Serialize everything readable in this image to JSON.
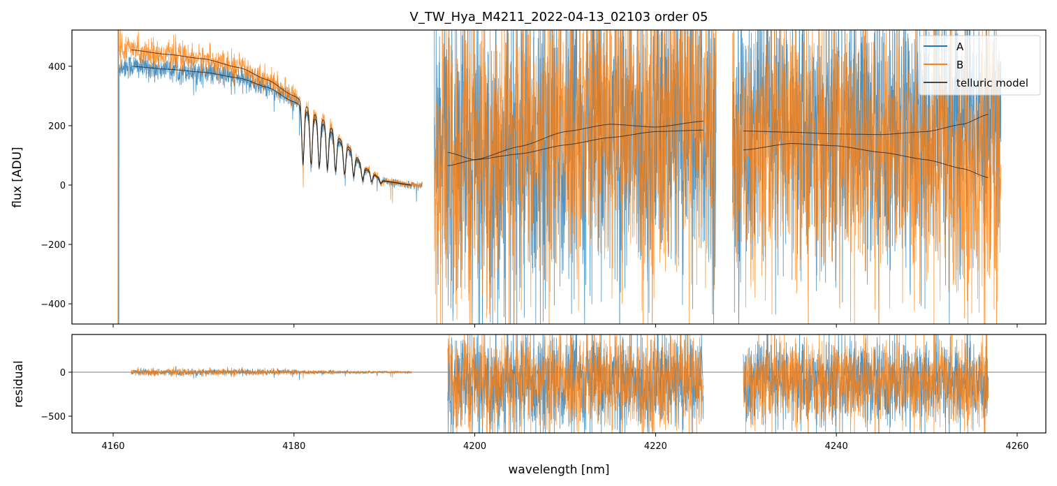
{
  "chart_data": {
    "type": "line",
    "title": "V_TW_Hya_M4211_2022-04-13_02103  order 05",
    "xlabel": "wavelength [nm]",
    "xlim": [
      4155.44,
      4263.17
    ],
    "x_ticks": [
      4160,
      4180,
      4200,
      4220,
      4240,
      4260
    ],
    "panels": [
      {
        "name": "flux",
        "ylabel": "flux [ADU]",
        "ylim": [
          -468,
          522
        ],
        "y_ticks": [
          -400,
          -200,
          0,
          200,
          400
        ],
        "y_tick_labels": [
          "−400",
          "−200",
          "0",
          "200",
          "400"
        ]
      },
      {
        "name": "residual",
        "ylabel": "residual",
        "ylim": [
          -690,
          428
        ],
        "y_ticks": [
          -500,
          0
        ],
        "y_tick_labels": [
          "−500",
          "0"
        ],
        "zero_line": true
      }
    ],
    "legend": {
      "placement": "top-right",
      "entries": [
        {
          "label": "A",
          "color": "#1f77b4"
        },
        {
          "label": "B",
          "color": "#ff7f0e"
        },
        {
          "label": "telluric model",
          "color": "#444444"
        }
      ]
    },
    "segments": [
      {
        "x": [
          4160.5,
          4194.2
        ],
        "noise": 15,
        "fit": [
          4162,
          4193
        ]
      },
      {
        "x": [
          4195.5,
          4226.7
        ],
        "noise": 260,
        "fit": [
          4197,
          4225.3
        ]
      },
      {
        "x": [
          4228.5,
          4258.2
        ],
        "noise": 230,
        "fit": [
          4229.7,
          4256.8
        ]
      }
    ],
    "model_A": [
      [
        [
          4162,
          400
        ],
        [
          4166,
          390
        ],
        [
          4170,
          380
        ],
        [
          4174,
          360
        ],
        [
          4177,
          330
        ],
        [
          4180,
          280
        ],
        [
          4183,
          210
        ],
        [
          4186,
          120
        ],
        [
          4188,
          50
        ],
        [
          4190,
          12
        ],
        [
          4193,
          0
        ]
      ],
      [
        [
          4197,
          110
        ],
        [
          4200,
          85
        ],
        [
          4205,
          105
        ],
        [
          4210,
          135
        ],
        [
          4215,
          160
        ],
        [
          4220,
          180
        ],
        [
          4225.3,
          185
        ]
      ],
      [
        [
          4229.7,
          182
        ],
        [
          4235,
          178
        ],
        [
          4240,
          172
        ],
        [
          4245,
          170
        ],
        [
          4250,
          180
        ],
        [
          4254,
          205
        ],
        [
          4256.8,
          238
        ]
      ]
    ],
    "model_B": [
      [
        [
          4162,
          455
        ],
        [
          4166,
          440
        ],
        [
          4170,
          425
        ],
        [
          4174,
          395
        ],
        [
          4177,
          355
        ],
        [
          4180,
          300
        ],
        [
          4183,
          225
        ],
        [
          4186,
          130
        ],
        [
          4188,
          55
        ],
        [
          4190,
          14
        ],
        [
          4193,
          0
        ]
      ],
      [
        [
          4197,
          65
        ],
        [
          4200,
          85
        ],
        [
          4205,
          130
        ],
        [
          4210,
          180
        ],
        [
          4215,
          205
        ],
        [
          4220,
          195
        ],
        [
          4225.3,
          215
        ]
      ],
      [
        [
          4229.7,
          118
        ],
        [
          4235,
          140
        ],
        [
          4240,
          132
        ],
        [
          4245,
          110
        ],
        [
          4250,
          85
        ],
        [
          4254,
          55
        ],
        [
          4256.8,
          25
        ]
      ]
    ],
    "absorption_lines": [
      4181.0,
      4181.9,
      4182.8,
      4183.7,
      4184.6,
      4185.6,
      4186.6,
      4187.6,
      4188.6,
      4189.6
    ]
  }
}
